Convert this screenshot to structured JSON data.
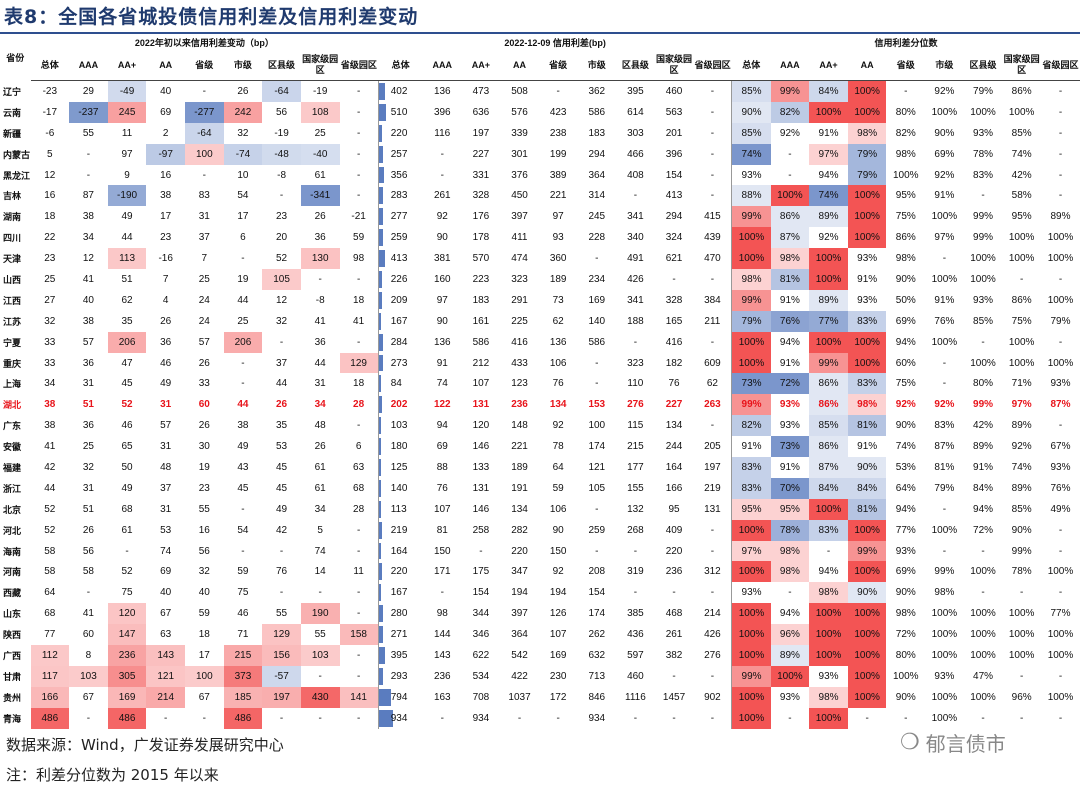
{
  "title": "表8：全国各省城投债信用利差及信用利差变动",
  "groups": {
    "change": "2022年初以来信用利差变动（bp）",
    "spread": "2022-12-09 信用利差(bp)",
    "pct": "信用利差分位数"
  },
  "province_header": "省份",
  "sub_headers": [
    "总体",
    "AAA",
    "AA+",
    "AA",
    "省级",
    "市级",
    "区县级",
    "国家级园区",
    "省级园区"
  ],
  "rows": [
    {
      "prov": "辽宁",
      "chg": [
        "-23",
        "29",
        "-49",
        "40",
        "-",
        "26",
        "-64",
        "-19",
        "-"
      ],
      "spr": [
        "402",
        "136",
        "473",
        "508",
        "-",
        "362",
        "395",
        "460",
        "-"
      ],
      "pct": [
        "85%",
        "99%",
        "84%",
        "100%",
        "-",
        "92%",
        "79%",
        "86%",
        "-"
      ]
    },
    {
      "prov": "云南",
      "chg": [
        "-17",
        "-237",
        "245",
        "69",
        "-277",
        "242",
        "56",
        "108",
        "-"
      ],
      "spr": [
        "510",
        "396",
        "636",
        "576",
        "423",
        "586",
        "614",
        "563",
        "-"
      ],
      "pct": [
        "90%",
        "82%",
        "100%",
        "100%",
        "80%",
        "100%",
        "100%",
        "100%",
        "-"
      ]
    },
    {
      "prov": "新疆",
      "chg": [
        "-6",
        "55",
        "11",
        "2",
        "-64",
        "32",
        "-19",
        "25",
        "-"
      ],
      "spr": [
        "220",
        "116",
        "197",
        "339",
        "238",
        "183",
        "303",
        "201",
        "-"
      ],
      "pct": [
        "85%",
        "92%",
        "91%",
        "98%",
        "82%",
        "90%",
        "93%",
        "85%",
        "-"
      ]
    },
    {
      "prov": "内蒙古",
      "chg": [
        "5",
        "-",
        "97",
        "-97",
        "100",
        "-74",
        "-48",
        "-40",
        "-"
      ],
      "spr": [
        "257",
        "-",
        "227",
        "301",
        "199",
        "294",
        "466",
        "396",
        "-"
      ],
      "pct": [
        "74%",
        "-",
        "97%",
        "79%",
        "98%",
        "69%",
        "78%",
        "74%",
        "-"
      ]
    },
    {
      "prov": "黑龙江",
      "chg": [
        "12",
        "-",
        "9",
        "16",
        "-",
        "10",
        "-8",
        "61",
        "-"
      ],
      "spr": [
        "356",
        "-",
        "331",
        "376",
        "389",
        "364",
        "408",
        "154",
        "-"
      ],
      "pct": [
        "93%",
        "-",
        "94%",
        "79%",
        "100%",
        "92%",
        "83%",
        "42%",
        "-"
      ]
    },
    {
      "prov": "吉林",
      "chg": [
        "16",
        "87",
        "-190",
        "38",
        "83",
        "54",
        "-",
        "-341",
        "-"
      ],
      "spr": [
        "283",
        "261",
        "328",
        "450",
        "221",
        "314",
        "-",
        "413",
        "-"
      ],
      "pct": [
        "88%",
        "100%",
        "74%",
        "100%",
        "95%",
        "91%",
        "-",
        "58%",
        "-"
      ]
    },
    {
      "prov": "湖南",
      "chg": [
        "18",
        "38",
        "49",
        "17",
        "31",
        "17",
        "23",
        "26",
        "-21"
      ],
      "spr": [
        "277",
        "92",
        "176",
        "397",
        "97",
        "245",
        "341",
        "294",
        "415"
      ],
      "pct": [
        "99%",
        "86%",
        "89%",
        "100%",
        "75%",
        "100%",
        "99%",
        "95%",
        "89%"
      ]
    },
    {
      "prov": "四川",
      "chg": [
        "22",
        "34",
        "44",
        "23",
        "37",
        "6",
        "20",
        "36",
        "59"
      ],
      "spr": [
        "259",
        "90",
        "178",
        "411",
        "93",
        "228",
        "340",
        "324",
        "439"
      ],
      "pct": [
        "100%",
        "87%",
        "92%",
        "100%",
        "86%",
        "97%",
        "99%",
        "100%",
        "100%"
      ]
    },
    {
      "prov": "天津",
      "chg": [
        "23",
        "12",
        "113",
        "-16",
        "7",
        "-",
        "52",
        "130",
        "98"
      ],
      "spr": [
        "413",
        "381",
        "570",
        "474",
        "360",
        "-",
        "491",
        "621",
        "470"
      ],
      "pct": [
        "100%",
        "98%",
        "100%",
        "93%",
        "98%",
        "-",
        "100%",
        "100%",
        "100%"
      ]
    },
    {
      "prov": "山西",
      "chg": [
        "25",
        "41",
        "51",
        "7",
        "25",
        "19",
        "105",
        "-",
        "-"
      ],
      "spr": [
        "226",
        "160",
        "223",
        "323",
        "189",
        "234",
        "426",
        "-",
        "-"
      ],
      "pct": [
        "98%",
        "81%",
        "100%",
        "91%",
        "90%",
        "100%",
        "100%",
        "-",
        "-"
      ]
    },
    {
      "prov": "江西",
      "chg": [
        "27",
        "40",
        "62",
        "4",
        "24",
        "44",
        "12",
        "-8",
        "18"
      ],
      "spr": [
        "209",
        "97",
        "183",
        "291",
        "73",
        "169",
        "341",
        "328",
        "384"
      ],
      "pct": [
        "99%",
        "91%",
        "89%",
        "93%",
        "50%",
        "91%",
        "93%",
        "86%",
        "100%"
      ]
    },
    {
      "prov": "江苏",
      "chg": [
        "32",
        "38",
        "35",
        "26",
        "24",
        "25",
        "32",
        "41",
        "41"
      ],
      "spr": [
        "167",
        "90",
        "161",
        "225",
        "62",
        "140",
        "188",
        "165",
        "211"
      ],
      "pct": [
        "79%",
        "76%",
        "77%",
        "83%",
        "69%",
        "76%",
        "85%",
        "75%",
        "79%"
      ]
    },
    {
      "prov": "宁夏",
      "chg": [
        "33",
        "57",
        "206",
        "36",
        "57",
        "206",
        "-",
        "36",
        "-"
      ],
      "spr": [
        "284",
        "136",
        "586",
        "416",
        "136",
        "586",
        "-",
        "416",
        "-"
      ],
      "pct": [
        "100%",
        "94%",
        "100%",
        "100%",
        "94%",
        "100%",
        "-",
        "100%",
        "-"
      ]
    },
    {
      "prov": "重庆",
      "chg": [
        "33",
        "36",
        "47",
        "46",
        "26",
        "-",
        "37",
        "44",
        "129"
      ],
      "spr": [
        "273",
        "91",
        "212",
        "433",
        "106",
        "-",
        "323",
        "182",
        "609"
      ],
      "pct": [
        "100%",
        "91%",
        "99%",
        "100%",
        "60%",
        "-",
        "100%",
        "100%",
        "100%"
      ]
    },
    {
      "prov": "上海",
      "chg": [
        "34",
        "31",
        "45",
        "49",
        "33",
        "-",
        "44",
        "31",
        "18"
      ],
      "spr": [
        "84",
        "74",
        "107",
        "123",
        "76",
        "-",
        "110",
        "76",
        "62"
      ],
      "pct": [
        "73%",
        "72%",
        "86%",
        "83%",
        "75%",
        "-",
        "80%",
        "71%",
        "93%"
      ]
    },
    {
      "prov": "湖北",
      "hl": true,
      "chg": [
        "38",
        "51",
        "52",
        "31",
        "60",
        "44",
        "26",
        "34",
        "28"
      ],
      "spr": [
        "202",
        "122",
        "131",
        "236",
        "134",
        "153",
        "276",
        "227",
        "263"
      ],
      "pct": [
        "99%",
        "93%",
        "86%",
        "98%",
        "92%",
        "92%",
        "99%",
        "97%",
        "87%"
      ]
    },
    {
      "prov": "广东",
      "chg": [
        "38",
        "36",
        "46",
        "57",
        "26",
        "38",
        "35",
        "48",
        "-"
      ],
      "spr": [
        "103",
        "94",
        "120",
        "148",
        "92",
        "100",
        "115",
        "134",
        "-"
      ],
      "pct": [
        "82%",
        "93%",
        "85%",
        "81%",
        "90%",
        "83%",
        "42%",
        "89%",
        "-"
      ]
    },
    {
      "prov": "安徽",
      "chg": [
        "41",
        "25",
        "65",
        "31",
        "30",
        "49",
        "53",
        "26",
        "6"
      ],
      "spr": [
        "180",
        "69",
        "146",
        "221",
        "78",
        "174",
        "215",
        "244",
        "205"
      ],
      "pct": [
        "91%",
        "73%",
        "86%",
        "91%",
        "74%",
        "87%",
        "89%",
        "92%",
        "67%"
      ]
    },
    {
      "prov": "福建",
      "chg": [
        "42",
        "32",
        "50",
        "48",
        "19",
        "43",
        "45",
        "61",
        "63"
      ],
      "spr": [
        "125",
        "88",
        "133",
        "189",
        "64",
        "121",
        "177",
        "164",
        "197"
      ],
      "pct": [
        "83%",
        "91%",
        "87%",
        "90%",
        "53%",
        "81%",
        "91%",
        "74%",
        "93%"
      ]
    },
    {
      "prov": "浙江",
      "chg": [
        "44",
        "31",
        "49",
        "37",
        "23",
        "45",
        "45",
        "61",
        "68"
      ],
      "spr": [
        "140",
        "76",
        "131",
        "191",
        "59",
        "105",
        "155",
        "166",
        "219"
      ],
      "pct": [
        "83%",
        "70%",
        "84%",
        "84%",
        "64%",
        "79%",
        "84%",
        "89%",
        "76%"
      ]
    },
    {
      "prov": "北京",
      "chg": [
        "52",
        "51",
        "68",
        "31",
        "55",
        "-",
        "49",
        "34",
        "28"
      ],
      "spr": [
        "113",
        "107",
        "146",
        "134",
        "106",
        "-",
        "132",
        "95",
        "131"
      ],
      "pct": [
        "95%",
        "95%",
        "100%",
        "81%",
        "94%",
        "-",
        "94%",
        "85%",
        "49%"
      ]
    },
    {
      "prov": "河北",
      "chg": [
        "52",
        "26",
        "61",
        "53",
        "16",
        "54",
        "42",
        "5",
        "-"
      ],
      "spr": [
        "219",
        "81",
        "258",
        "282",
        "90",
        "259",
        "268",
        "409",
        "-"
      ],
      "pct": [
        "100%",
        "78%",
        "83%",
        "100%",
        "77%",
        "100%",
        "72%",
        "90%",
        "-"
      ]
    },
    {
      "prov": "海南",
      "chg": [
        "58",
        "56",
        "-",
        "74",
        "56",
        "-",
        "-",
        "74",
        "-"
      ],
      "spr": [
        "164",
        "150",
        "-",
        "220",
        "150",
        "-",
        "-",
        "220",
        "-"
      ],
      "pct": [
        "97%",
        "98%",
        "-",
        "99%",
        "93%",
        "-",
        "-",
        "99%",
        "-"
      ]
    },
    {
      "prov": "河南",
      "chg": [
        "58",
        "58",
        "52",
        "69",
        "32",
        "59",
        "76",
        "14",
        "11"
      ],
      "spr": [
        "220",
        "171",
        "175",
        "347",
        "92",
        "208",
        "319",
        "236",
        "312"
      ],
      "pct": [
        "100%",
        "98%",
        "94%",
        "100%",
        "69%",
        "99%",
        "100%",
        "78%",
        "100%"
      ]
    },
    {
      "prov": "西藏",
      "chg": [
        "64",
        "-",
        "75",
        "40",
        "40",
        "75",
        "-",
        "-",
        "-"
      ],
      "spr": [
        "167",
        "-",
        "154",
        "194",
        "194",
        "154",
        "-",
        "-",
        "-"
      ],
      "pct": [
        "93%",
        "-",
        "98%",
        "90%",
        "90%",
        "98%",
        "-",
        "-",
        "-"
      ]
    },
    {
      "prov": "山东",
      "chg": [
        "68",
        "41",
        "120",
        "67",
        "59",
        "46",
        "55",
        "190",
        "-"
      ],
      "spr": [
        "280",
        "98",
        "344",
        "397",
        "126",
        "174",
        "385",
        "468",
        "214"
      ],
      "pct": [
        "100%",
        "94%",
        "100%",
        "100%",
        "98%",
        "100%",
        "100%",
        "100%",
        "77%"
      ]
    },
    {
      "prov": "陕西",
      "chg": [
        "77",
        "60",
        "147",
        "63",
        "18",
        "71",
        "129",
        "55",
        "158"
      ],
      "spr": [
        "271",
        "144",
        "346",
        "364",
        "107",
        "262",
        "436",
        "261",
        "426"
      ],
      "pct": [
        "100%",
        "96%",
        "100%",
        "100%",
        "72%",
        "100%",
        "100%",
        "100%",
        "100%"
      ]
    },
    {
      "prov": "广西",
      "chg": [
        "112",
        "8",
        "236",
        "143",
        "17",
        "215",
        "156",
        "103",
        "-"
      ],
      "spr": [
        "395",
        "143",
        "622",
        "542",
        "169",
        "632",
        "597",
        "382",
        "276"
      ],
      "pct": [
        "100%",
        "89%",
        "100%",
        "100%",
        "80%",
        "100%",
        "100%",
        "100%",
        "100%"
      ]
    },
    {
      "prov": "甘肃",
      "chg": [
        "117",
        "103",
        "305",
        "121",
        "100",
        "373",
        "-57",
        "-",
        "-"
      ],
      "spr": [
        "293",
        "236",
        "534",
        "422",
        "230",
        "713",
        "460",
        "-",
        "-"
      ],
      "pct": [
        "99%",
        "100%",
        "93%",
        "100%",
        "100%",
        "93%",
        "47%",
        "-",
        "-"
      ]
    },
    {
      "prov": "贵州",
      "chg": [
        "166",
        "67",
        "169",
        "214",
        "67",
        "185",
        "197",
        "430",
        "141"
      ],
      "spr": [
        "794",
        "163",
        "708",
        "1037",
        "172",
        "846",
        "1116",
        "1457",
        "902"
      ],
      "pct": [
        "100%",
        "93%",
        "98%",
        "100%",
        "90%",
        "100%",
        "100%",
        "96%",
        "100%"
      ]
    },
    {
      "prov": "青海",
      "chg": [
        "486",
        "-",
        "486",
        "-",
        "-",
        "486",
        "-",
        "-",
        "-"
      ],
      "spr": [
        "934",
        "-",
        "934",
        "-",
        "-",
        "934",
        "-",
        "-",
        "-"
      ],
      "pct": [
        "100%",
        "-",
        "100%",
        "-",
        "-",
        "100%",
        "-",
        "-",
        "-"
      ]
    }
  ],
  "source": "数据来源：Wind，广发证券发展研究中心",
  "note": "注：利差分位数为 2015 年以来",
  "watermark": "郁言债市",
  "colors": {
    "title": "#1f3a6e",
    "highlight": "#e8141b",
    "pos": "#f24b4b",
    "neg": "#5a7cbf",
    "bar": "#5a7cbf"
  }
}
